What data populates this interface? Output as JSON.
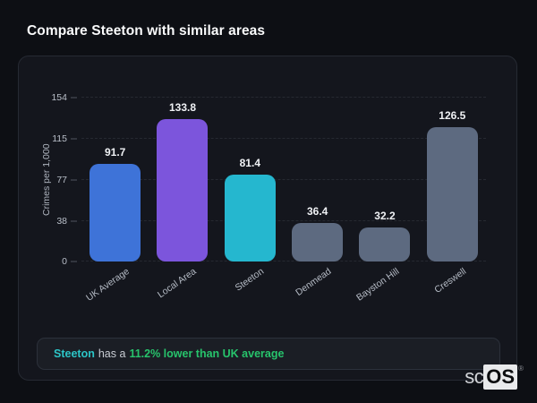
{
  "page": {
    "title": "Compare Steeton with similar areas"
  },
  "chart_data": {
    "type": "bar",
    "title": "Compare Steeton with similar areas",
    "categories": [
      "UK Average",
      "Local Area",
      "Steeton",
      "Denmead",
      "Bayston Hill",
      "Creswell"
    ],
    "values": [
      91.7,
      133.8,
      81.4,
      36.4,
      32.2,
      126.5
    ],
    "bar_colors": [
      "#3e73d8",
      "#7c55dc",
      "#25b7cf",
      "#5d6a80",
      "#5d6a80",
      "#5d6a80"
    ],
    "xlabel": "",
    "ylabel": "Crimes per 1,000",
    "ylim": [
      0,
      154
    ],
    "yticks": [
      0,
      38,
      77,
      115,
      154
    ],
    "grid": "horizontal-dashed",
    "legend": "none",
    "value_labels_shown": true
  },
  "note": {
    "area_name": "Steeton",
    "middle_text": "has a",
    "highlight_text": "11.2% lower than UK average",
    "area_color": "#2cc5c7",
    "highlight_color": "#27c46c"
  },
  "logo": {
    "prefix": "sc",
    "suffix": "OS",
    "registered_mark": "®"
  },
  "colors": {
    "page_background": "#0d0f14",
    "panel_background": "#14161d",
    "panel_border": "#262a33",
    "note_background": "#1b1e25",
    "note_border": "#2c313b",
    "text_primary": "#f2f4f7",
    "text_muted": "#b4bac4"
  }
}
